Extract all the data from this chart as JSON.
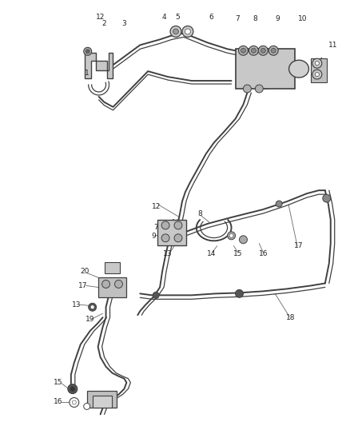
{
  "bg_color": "#ffffff",
  "line_color": "#404040",
  "component_color": "#888888",
  "component_fc": "#d8d8d8",
  "label_color": "#222222",
  "figsize": [
    4.38,
    5.33
  ],
  "dpi": 100,
  "fs": 6.5,
  "lw_tube": 1.4,
  "lw_thin": 0.9
}
